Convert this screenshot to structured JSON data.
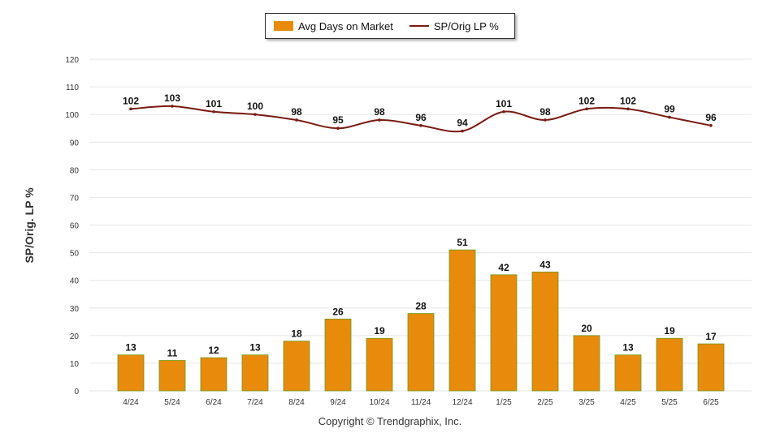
{
  "legend": {
    "bar_series": "Avg Days on Market",
    "line_series": "SP/Orig LP %"
  },
  "copyright": "Copyright © Trendgraphix, Inc.",
  "colors": {
    "bar": "#e88a0c",
    "bar_edge": "#6a9a1a",
    "line": "#7a1a10",
    "grid": "#e6e6e6"
  },
  "chart_data": {
    "type": "bar",
    "categories": [
      "4/24",
      "5/24",
      "6/24",
      "7/24",
      "8/24",
      "9/24",
      "10/24",
      "11/24",
      "12/24",
      "1/25",
      "2/25",
      "3/25",
      "4/25",
      "5/25",
      "6/25"
    ],
    "series": [
      {
        "name": "Avg Days on Market",
        "type": "bar",
        "values": [
          13,
          11,
          12,
          13,
          18,
          26,
          19,
          28,
          51,
          42,
          43,
          20,
          13,
          19,
          17
        ]
      },
      {
        "name": "SP/Orig LP %",
        "type": "line",
        "smooth": true,
        "values": [
          102,
          103,
          101,
          100,
          98,
          95,
          98,
          96,
          94,
          101,
          98,
          102,
          102,
          99,
          96
        ]
      }
    ],
    "ylabel": "SP/Orig. LP %",
    "ylim": [
      0,
      120
    ],
    "yticks": [
      0,
      10,
      20,
      30,
      40,
      50,
      60,
      70,
      80,
      90,
      100,
      110,
      120
    ],
    "grid": true,
    "legend_position": "top-center"
  }
}
